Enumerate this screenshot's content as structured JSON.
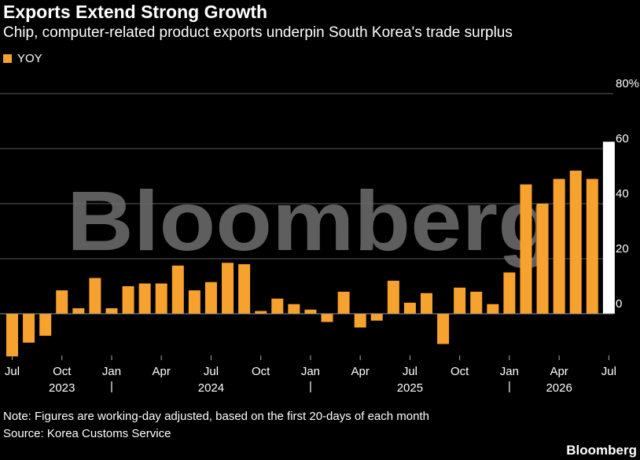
{
  "header": {
    "title": "Exports Extend Strong Growth",
    "subtitle": "Chip, computer-related product exports underpin South Korea's trade surplus"
  },
  "watermark": "Bloomberg",
  "footer": {
    "note": "Note: Figures are working-day adjusted, based on the first 20-days of each month",
    "source": "Source: Korea Customs Service",
    "brand": "Bloomberg"
  },
  "colors": {
    "background": "#000000",
    "bar": "#f7a12f",
    "latest_bar": "#ffffff",
    "grid": "#5a5a5a",
    "zero_line": "#9a9a9a",
    "watermark": "#6e6e6e"
  },
  "chart_data": {
    "type": "bar",
    "x": [
      "2023-07",
      "2023-08",
      "2023-09",
      "2023-10",
      "2023-11",
      "2023-12",
      "2024-01",
      "2024-02",
      "2024-03",
      "2024-04",
      "2024-05",
      "2024-06",
      "2024-07",
      "2024-08",
      "2024-09",
      "2024-10",
      "2024-11",
      "2024-12",
      "2025-01",
      "2025-02",
      "2025-03",
      "2025-04",
      "2025-05",
      "2025-06",
      "2025-07",
      "2025-08",
      "2025-09",
      "2025-10",
      "2025-11",
      "2025-12",
      "2026-01",
      "2026-02",
      "2026-03",
      "2026-04",
      "2026-05",
      "2026-06",
      "2026-07"
    ],
    "series": [
      {
        "name": "YOY",
        "values": [
          -15.5,
          -10.5,
          -8,
          8.5,
          2,
          13,
          2,
          10,
          11,
          11,
          17.5,
          8.5,
          11.5,
          18.5,
          18,
          1,
          5.5,
          3.5,
          1.5,
          -3,
          8,
          -5,
          -2.5,
          12,
          4,
          7.5,
          -11,
          9.5,
          8,
          3.5,
          15,
          47,
          40,
          49,
          52,
          49,
          62.5
        ]
      }
    ],
    "highlight_last": true,
    "x_tick_labels": [
      {
        "x": "2023-07",
        "label": "Jul"
      },
      {
        "x": "2023-10",
        "label": "Oct"
      },
      {
        "x": "2024-01",
        "label": "Jan"
      },
      {
        "x": "2024-04",
        "label": "Apr"
      },
      {
        "x": "2024-07",
        "label": "Jul"
      },
      {
        "x": "2024-10",
        "label": "Oct"
      },
      {
        "x": "2025-01",
        "label": "Jan"
      },
      {
        "x": "2025-04",
        "label": "Apr"
      },
      {
        "x": "2025-07",
        "label": "Jul"
      },
      {
        "x": "2025-10",
        "label": "Oct"
      },
      {
        "x": "2026-01",
        "label": "Jan"
      },
      {
        "x": "2026-04",
        "label": "Apr"
      },
      {
        "x": "2026-07",
        "label": "Jul"
      }
    ],
    "year_labels": [
      {
        "x": "2023-10",
        "label": "2023"
      },
      {
        "x": "2024-07",
        "label": "2024"
      },
      {
        "x": "2025-07",
        "label": "2025"
      },
      {
        "x": "2026-04",
        "label": "2026"
      }
    ],
    "year_separators": [
      "2024-01",
      "2025-01",
      "2026-01"
    ],
    "y_ticks": [
      {
        "value": 0,
        "label": "0"
      },
      {
        "value": 20,
        "label": "20"
      },
      {
        "value": 40,
        "label": "40"
      },
      {
        "value": 60,
        "label": "60"
      },
      {
        "value": 80,
        "label": "80%"
      }
    ],
    "ylim": [
      -20,
      80
    ],
    "grid": true,
    "legend": "top-left",
    "y_axis_side": "right"
  }
}
